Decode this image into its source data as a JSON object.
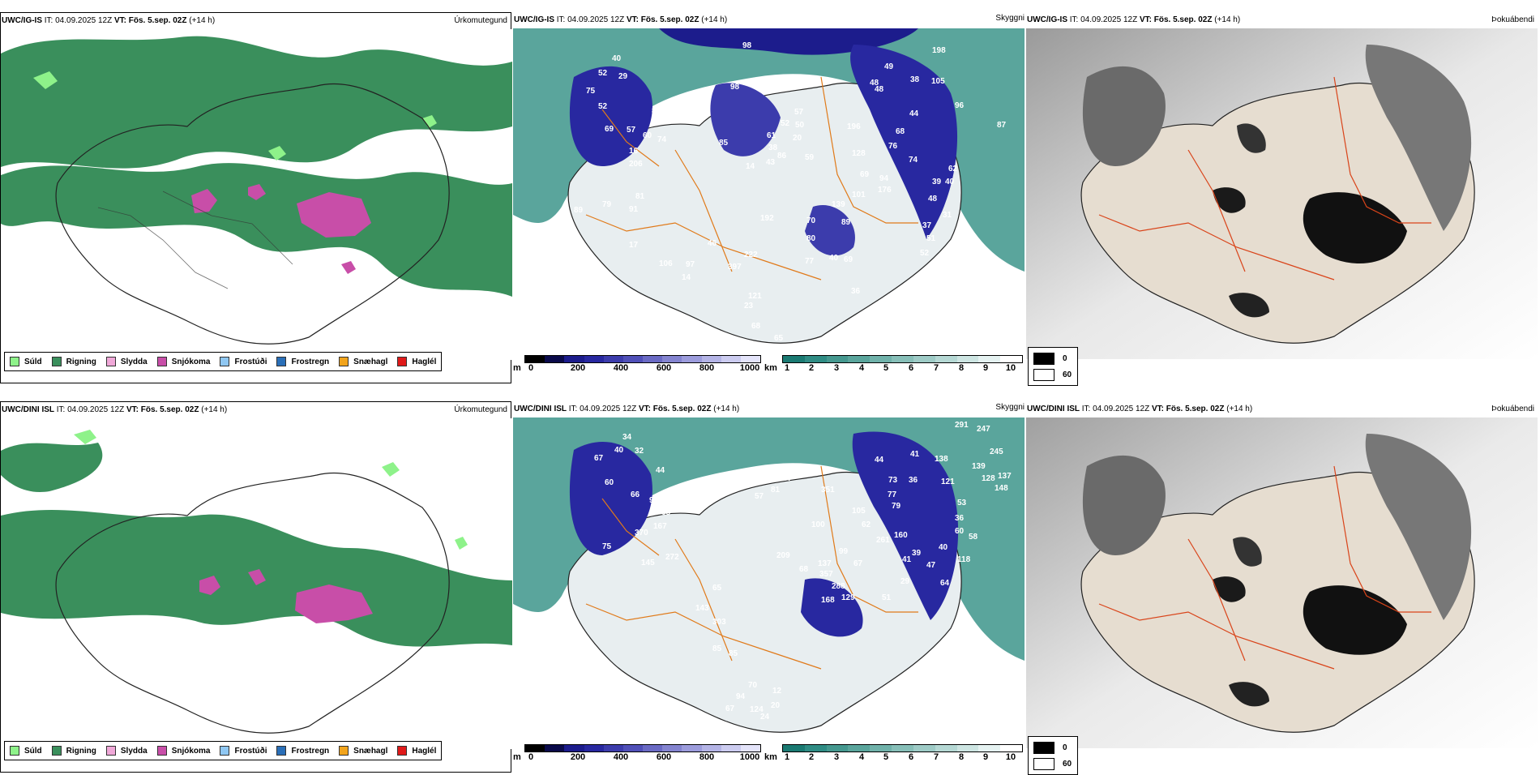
{
  "rows": [
    {
      "model": "UWC/IG-IS",
      "it_label": "IT:",
      "it_value": "04.09.2025 12Z",
      "vt_label": "VT:",
      "vt_value": "Fös. 5.sep. 02Z",
      "lead": "(+14 h)",
      "titles": [
        "Úrkomutegund",
        "Skyggni",
        "Þokuábendi"
      ],
      "elev_labels": [
        "98",
        "40",
        "52",
        "29",
        "75",
        "52",
        "89",
        "69",
        "57",
        "60",
        "74",
        "98",
        "85",
        "16",
        "206",
        "14",
        "61",
        "52",
        "57",
        "50",
        "20",
        "38",
        "43",
        "86",
        "59",
        "196",
        "48",
        "38",
        "105",
        "96",
        "87",
        "44",
        "68",
        "76",
        "74",
        "128",
        "69",
        "176",
        "101",
        "139",
        "89",
        "192",
        "70",
        "80",
        "46",
        "222",
        "397",
        "40",
        "69",
        "77",
        "36",
        "121",
        "23",
        "68",
        "65",
        "81",
        "91",
        "79",
        "89",
        "17",
        "106",
        "97",
        "14",
        "39",
        "48",
        "37",
        "51",
        "52",
        "31",
        "62",
        "40",
        "198",
        "49",
        "48",
        "94"
      ]
    },
    {
      "model": "UWC/DINI ISL",
      "it_label": "IT:",
      "it_value": "04.09.2025 12Z",
      "vt_label": "VT:",
      "vt_value": "Fös. 5.sep. 02Z",
      "lead": "(+14 h)",
      "titles": [
        "Úrkomutegund",
        "Skyggni",
        "Þokuábendi"
      ],
      "elev_labels": [
        "34",
        "40",
        "32",
        "67",
        "44",
        "60",
        "66",
        "98",
        "88",
        "167",
        "370",
        "272",
        "145",
        "75",
        "65",
        "143",
        "303",
        "85",
        "85",
        "57",
        "81",
        "97",
        "100",
        "351",
        "105",
        "62",
        "261",
        "160",
        "79",
        "77",
        "73",
        "36",
        "44",
        "41",
        "138",
        "121",
        "53",
        "36",
        "60",
        "58",
        "118",
        "47",
        "40",
        "64",
        "29",
        "51",
        "129",
        "168",
        "288",
        "357",
        "137",
        "99",
        "67",
        "68",
        "209",
        "245",
        "139",
        "128",
        "137",
        "148",
        "291",
        "247",
        "41",
        "39",
        "70",
        "94",
        "124",
        "20",
        "12",
        "24",
        "67"
      ]
    }
  ],
  "precip_legend": [
    {
      "label": "Súld",
      "color": "#8ef28a"
    },
    {
      "label": "Rigning",
      "color": "#3a8f5c"
    },
    {
      "label": "Slydda",
      "color": "#f0a8d8"
    },
    {
      "label": "Snjókoma",
      "color": "#c84ea8"
    },
    {
      "label": "Frostúði",
      "color": "#8fc7f2"
    },
    {
      "label": "Frostregn",
      "color": "#2a6fb8"
    },
    {
      "label": "Snæhagl",
      "color": "#f2a41c"
    },
    {
      "label": "Haglél",
      "color": "#e01a1a"
    }
  ],
  "elev_scale": {
    "unit": "m",
    "ticks": [
      "0",
      "200",
      "400",
      "600",
      "800",
      "1000"
    ],
    "colors": [
      "#000000",
      "#0a0a4a",
      "#1c1c8c",
      "#2828a0",
      "#3c3cac",
      "#5050b8",
      "#6a6ac4",
      "#8484d0",
      "#9c9cdc",
      "#b4b4e6",
      "#ccccf0",
      "#e4e4fa"
    ]
  },
  "vis_scale": {
    "unit": "km",
    "ticks": [
      "1",
      "2",
      "3",
      "4",
      "5",
      "6",
      "7",
      "8",
      "9",
      "10"
    ],
    "colors": [
      "#1a7a72",
      "#2f8c84",
      "#45988f",
      "#5aa59c",
      "#70b2aa",
      "#87bfb8",
      "#9ecbc6",
      "#b5d8d4",
      "#cde5e2",
      "#e5f2f1",
      "#ffffff"
    ]
  },
  "fog_legend": [
    {
      "label": "0",
      "color": "#000000"
    },
    {
      "label": "60",
      "color": "#ffffff"
    }
  ]
}
